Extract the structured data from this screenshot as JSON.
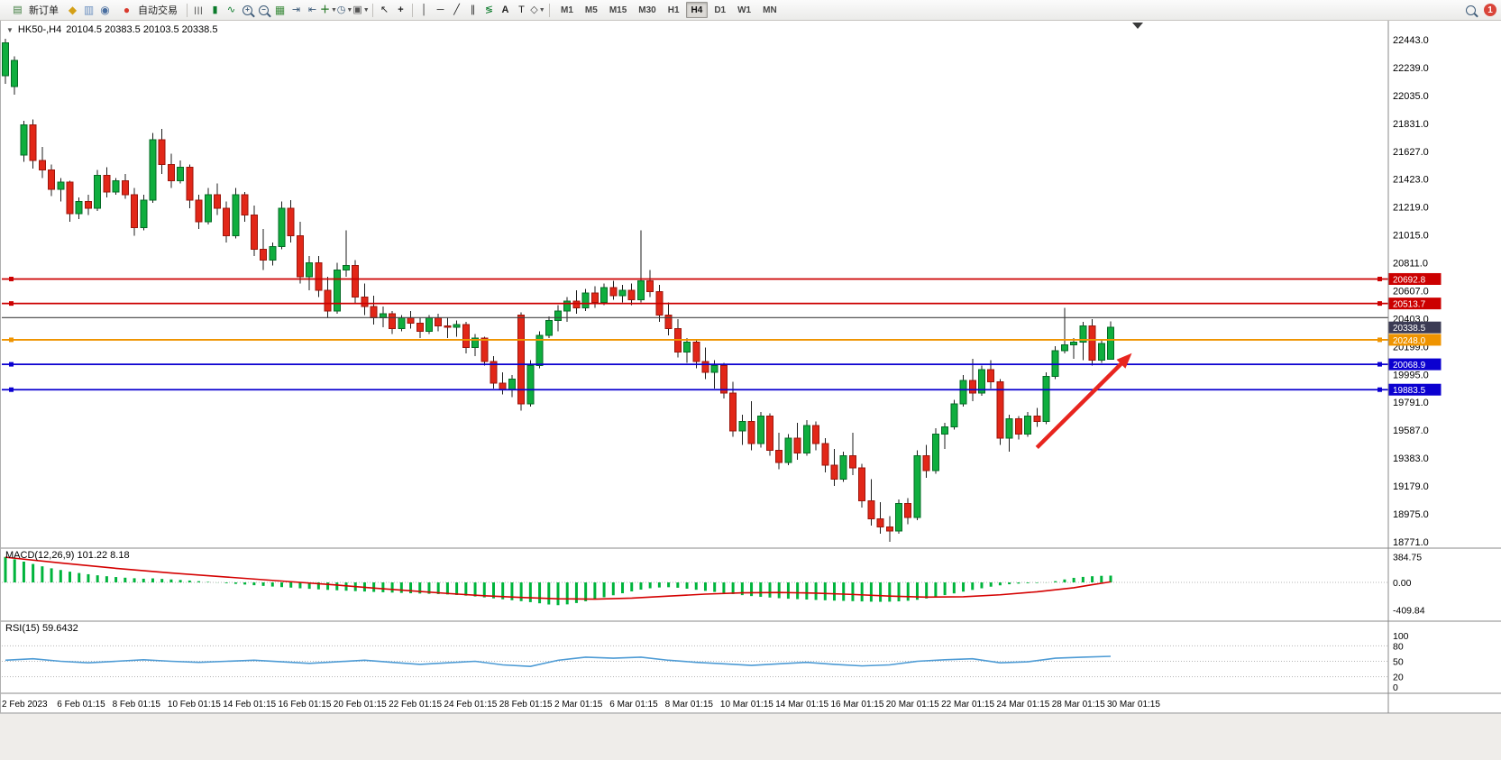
{
  "toolbar": {
    "new_order_label": "新订单",
    "auto_trading_label": "自动交易",
    "timeframes": [
      "M1",
      "M5",
      "M15",
      "M30",
      "H1",
      "H4",
      "D1",
      "W1",
      "MN"
    ],
    "active_timeframe": "H4",
    "notification_count": "1"
  },
  "chart": {
    "title_symbol": "HK50-,H4",
    "title_ohlc": "20104.5 20383.5 20103.5 20338.5",
    "macd_label": "MACD(12,26,9) 101.22 8.18",
    "rsi_label": "RSI(15) 59.6432"
  },
  "chart_data": {
    "type": "candlestick",
    "symbol": "HK50-",
    "timeframe": "H4",
    "price_axis": [
      22443.0,
      22239.0,
      22035.0,
      21831.0,
      21627.0,
      21423.0,
      21219.0,
      21015.0,
      20811.0,
      20607.0,
      20403.0,
      20199.0,
      19995.0,
      19791.0,
      19587.0,
      19383.0,
      19179.0,
      18975.0,
      18771.0
    ],
    "candles": [
      [
        22180,
        22450,
        22120,
        22420
      ],
      [
        22100,
        22320,
        22040,
        22290
      ],
      [
        21600,
        21850,
        21550,
        21820
      ],
      [
        21820,
        21860,
        21500,
        21560
      ],
      [
        21560,
        21660,
        21430,
        21490
      ],
      [
        21490,
        21530,
        21300,
        21350
      ],
      [
        21350,
        21430,
        21260,
        21400
      ],
      [
        21400,
        21410,
        21110,
        21170
      ],
      [
        21170,
        21290,
        21130,
        21260
      ],
      [
        21260,
        21310,
        21160,
        21210
      ],
      [
        21210,
        21490,
        21190,
        21450
      ],
      [
        21450,
        21510,
        21290,
        21330
      ],
      [
        21330,
        21430,
        21310,
        21410
      ],
      [
        21410,
        21460,
        21280,
        21310
      ],
      [
        21310,
        21360,
        21010,
        21070
      ],
      [
        21070,
        21310,
        21050,
        21270
      ],
      [
        21270,
        21760,
        21250,
        21710
      ],
      [
        21710,
        21790,
        21460,
        21530
      ],
      [
        21530,
        21610,
        21360,
        21410
      ],
      [
        21410,
        21560,
        21390,
        21510
      ],
      [
        21510,
        21530,
        21210,
        21270
      ],
      [
        21270,
        21310,
        21060,
        21110
      ],
      [
        21110,
        21360,
        21090,
        21310
      ],
      [
        21310,
        21390,
        21160,
        21210
      ],
      [
        21210,
        21260,
        20960,
        21010
      ],
      [
        21010,
        21360,
        20990,
        21310
      ],
      [
        21310,
        21330,
        21110,
        21160
      ],
      [
        21160,
        21230,
        20860,
        20910
      ],
      [
        20910,
        21060,
        20760,
        20830
      ],
      [
        20830,
        20960,
        20790,
        20930
      ],
      [
        20930,
        21260,
        20910,
        21210
      ],
      [
        21210,
        21270,
        20960,
        21010
      ],
      [
        21010,
        21110,
        20660,
        20710
      ],
      [
        20710,
        20860,
        20610,
        20810
      ],
      [
        20810,
        20860,
        20560,
        20610
      ],
      [
        20610,
        20710,
        20410,
        20460
      ],
      [
        20460,
        20810,
        20440,
        20760
      ],
      [
        20760,
        21050,
        20710,
        20790
      ],
      [
        20790,
        20830,
        20510,
        20560
      ],
      [
        20560,
        20660,
        20430,
        20490
      ],
      [
        20490,
        20570,
        20360,
        20410
      ],
      [
        20410,
        20490,
        20340,
        20440
      ],
      [
        20440,
        20460,
        20290,
        20330
      ],
      [
        20330,
        20430,
        20310,
        20410
      ],
      [
        20410,
        20460,
        20330,
        20370
      ],
      [
        20370,
        20410,
        20260,
        20310
      ],
      [
        20310,
        20430,
        20290,
        20410
      ],
      [
        20410,
        20440,
        20310,
        20350
      ],
      [
        20350,
        20410,
        20260,
        20340
      ],
      [
        20340,
        20390,
        20270,
        20360
      ],
      [
        20360,
        20380,
        20150,
        20190
      ],
      [
        20190,
        20290,
        20130,
        20260
      ],
      [
        20260,
        20270,
        20060,
        20090
      ],
      [
        20090,
        20130,
        19890,
        19930
      ],
      [
        19930,
        20010,
        19850,
        19880
      ],
      [
        19880,
        19990,
        19830,
        19960
      ],
      [
        20430,
        20450,
        19730,
        19780
      ],
      [
        19780,
        20100,
        19760,
        20060
      ],
      [
        20060,
        20310,
        20040,
        20280
      ],
      [
        20280,
        20420,
        20260,
        20390
      ],
      [
        20390,
        20500,
        20310,
        20460
      ],
      [
        20460,
        20560,
        20380,
        20530
      ],
      [
        20530,
        20610,
        20440,
        20480
      ],
      [
        20480,
        20620,
        20460,
        20590
      ],
      [
        20590,
        20640,
        20480,
        20520
      ],
      [
        20520,
        20660,
        20500,
        20630
      ],
      [
        20630,
        20680,
        20540,
        20570
      ],
      [
        20570,
        20650,
        20520,
        20610
      ],
      [
        20610,
        20660,
        20500,
        20540
      ],
      [
        20540,
        21050,
        20520,
        20680
      ],
      [
        20680,
        20760,
        20560,
        20600
      ],
      [
        20600,
        20650,
        20380,
        20430
      ],
      [
        20430,
        20520,
        20280,
        20330
      ],
      [
        20330,
        20400,
        20120,
        20160
      ],
      [
        20160,
        20260,
        20080,
        20230
      ],
      [
        20230,
        20250,
        20040,
        20090
      ],
      [
        20090,
        20190,
        19960,
        20010
      ],
      [
        20010,
        20100,
        19890,
        20060
      ],
      [
        20060,
        20080,
        19820,
        19860
      ],
      [
        19860,
        19940,
        19540,
        19580
      ],
      [
        19580,
        19700,
        19480,
        19650
      ],
      [
        19650,
        19800,
        19440,
        19490
      ],
      [
        19490,
        19720,
        19460,
        19690
      ],
      [
        19690,
        19710,
        19400,
        19440
      ],
      [
        19440,
        19570,
        19300,
        19350
      ],
      [
        19350,
        19560,
        19330,
        19530
      ],
      [
        19530,
        19640,
        19370,
        19420
      ],
      [
        19420,
        19660,
        19400,
        19620
      ],
      [
        19620,
        19650,
        19440,
        19490
      ],
      [
        19490,
        19530,
        19280,
        19330
      ],
      [
        19330,
        19450,
        19180,
        19230
      ],
      [
        19230,
        19430,
        19210,
        19400
      ],
      [
        19400,
        19570,
        19260,
        19310
      ],
      [
        19310,
        19340,
        19020,
        19070
      ],
      [
        19070,
        19230,
        18890,
        18940
      ],
      [
        18940,
        19060,
        18830,
        18880
      ],
      [
        18880,
        18960,
        18770,
        18850
      ],
      [
        18850,
        19080,
        18830,
        19050
      ],
      [
        19050,
        19090,
        18900,
        18950
      ],
      [
        18950,
        19440,
        18930,
        19400
      ],
      [
        19400,
        19480,
        19240,
        19290
      ],
      [
        19290,
        19600,
        19270,
        19560
      ],
      [
        19560,
        19640,
        19450,
        19610
      ],
      [
        19610,
        19810,
        19590,
        19780
      ],
      [
        19780,
        19990,
        19760,
        19950
      ],
      [
        19950,
        20110,
        19800,
        19860
      ],
      [
        19860,
        20060,
        19840,
        20030
      ],
      [
        20030,
        20100,
        19890,
        19940
      ],
      [
        19940,
        19960,
        19480,
        19530
      ],
      [
        19530,
        19700,
        19430,
        19670
      ],
      [
        19670,
        19690,
        19520,
        19560
      ],
      [
        19560,
        19720,
        19540,
        19690
      ],
      [
        19690,
        19750,
        19610,
        19650
      ],
      [
        19650,
        20010,
        19630,
        19980
      ],
      [
        19980,
        20200,
        19960,
        20170
      ],
      [
        20170,
        20480,
        20150,
        20210
      ],
      [
        20210,
        20260,
        20110,
        20230
      ],
      [
        20230,
        20380,
        20100,
        20350
      ],
      [
        20350,
        20400,
        20060,
        20100
      ],
      [
        20100,
        20250,
        20080,
        20220
      ],
      [
        20104.5,
        20383.5,
        20103.5,
        20338.5
      ]
    ],
    "time_labels": [
      {
        "t": "2 Feb 2023",
        "i": 0
      },
      {
        "t": "6 Feb 01:15",
        "i": 6
      },
      {
        "t": "8 Feb 01:15",
        "i": 12
      },
      {
        "t": "10 Feb 01:15",
        "i": 18
      },
      {
        "t": "14 Feb 01:15",
        "i": 24
      },
      {
        "t": "16 Feb 01:15",
        "i": 30
      },
      {
        "t": "20 Feb 01:15",
        "i": 36
      },
      {
        "t": "22 Feb 01:15",
        "i": 42
      },
      {
        "t": "24 Feb 01:15",
        "i": 48
      },
      {
        "t": "28 Feb 01:15",
        "i": 54
      },
      {
        "t": "2 Mar 01:15",
        "i": 60
      },
      {
        "t": "6 Mar 01:15",
        "i": 66
      },
      {
        "t": "8 Mar 01:15",
        "i": 72
      },
      {
        "t": "10 Mar 01:15",
        "i": 78
      },
      {
        "t": "14 Mar 01:15",
        "i": 84
      },
      {
        "t": "16 Mar 01:15",
        "i": 90
      },
      {
        "t": "20 Mar 01:15",
        "i": 96
      },
      {
        "t": "22 Mar 01:15",
        "i": 102
      },
      {
        "t": "24 Mar 01:15",
        "i": 108
      },
      {
        "t": "28 Mar 01:15",
        "i": 114
      },
      {
        "t": "30 Mar 01:15",
        "i": 120
      }
    ],
    "hlines": [
      {
        "price": 20692.8,
        "color": "#cc0000",
        "w": 1.8,
        "label": "20692.8"
      },
      {
        "price": 20513.7,
        "color": "#cc0000",
        "w": 1.8,
        "label": "20513.7"
      },
      {
        "price": 20410.0,
        "color": "#404040",
        "w": 1.1,
        "label": null
      },
      {
        "price": 20248.0,
        "color": "#ef9400",
        "w": 1.8,
        "label": "20248.0"
      },
      {
        "price": 20068.9,
        "color": "#0b00d0",
        "w": 1.8,
        "label": "20068.9"
      },
      {
        "price": 19883.5,
        "color": "#0b00d0",
        "w": 1.8,
        "label": "19883.5"
      }
    ],
    "bid_marker": {
      "price": 20338.5,
      "label": "20338.5",
      "color": "#3b3b54"
    },
    "colors": {
      "up": "#0fae3e",
      "up_border": "#056b25",
      "down": "#e22718",
      "down_border": "#9c150b",
      "wick": "#1c1c1c"
    },
    "macd": {
      "axis_values": [
        384.75,
        0.0,
        -409.84
      ],
      "axis_labels": [
        "384.75",
        "0.00",
        "-409.84"
      ],
      "hist_color": "#00b43c",
      "signal_color": "#d40000",
      "histogram": [
        380,
        345,
        310,
        275,
        240,
        210,
        185,
        160,
        140,
        122,
        106,
        92,
        80,
        70,
        62,
        55,
        60,
        52,
        44,
        36,
        28,
        18,
        8,
        -2,
        -12,
        -22,
        -32,
        -42,
        -52,
        -62,
        -70,
        -78,
        -88,
        -96,
        -104,
        -112,
        -118,
        -124,
        -130,
        -136,
        -142,
        -147,
        -152,
        -157,
        -162,
        -166,
        -170,
        -174,
        -180,
        -188,
        -198,
        -210,
        -224,
        -238,
        -252,
        -266,
        -280,
        -295,
        -312,
        -330,
        -340,
        -328,
        -308,
        -282,
        -252,
        -222,
        -192,
        -162,
        -134,
        -108,
        -88,
        -76,
        -72,
        -80,
        -94,
        -110,
        -126,
        -142,
        -158,
        -174,
        -190,
        -204,
        -216,
        -226,
        -236,
        -244,
        -250,
        -256,
        -262,
        -267,
        -272,
        -276,
        -280,
        -284,
        -288,
        -290,
        -288,
        -283,
        -274,
        -260,
        -240,
        -216,
        -190,
        -164,
        -138,
        -112,
        -88,
        -64,
        -44,
        -28,
        -18,
        -12,
        -8,
        -2,
        18,
        44,
        68,
        82,
        92,
        98,
        101.22
      ],
      "signal": [
        [
          0,
          375
        ],
        [
          6,
          290
        ],
        [
          12,
          210
        ],
        [
          18,
          140
        ],
        [
          24,
          80
        ],
        [
          30,
          20
        ],
        [
          36,
          -40
        ],
        [
          40,
          -85
        ],
        [
          44,
          -125
        ],
        [
          48,
          -165
        ],
        [
          52,
          -200
        ],
        [
          56,
          -225
        ],
        [
          60,
          -245
        ],
        [
          64,
          -250
        ],
        [
          68,
          -235
        ],
        [
          72,
          -205
        ],
        [
          76,
          -175
        ],
        [
          80,
          -155
        ],
        [
          84,
          -150
        ],
        [
          88,
          -160
        ],
        [
          92,
          -180
        ],
        [
          96,
          -205
        ],
        [
          100,
          -220
        ],
        [
          104,
          -215
        ],
        [
          108,
          -185
        ],
        [
          112,
          -140
        ],
        [
          116,
          -80
        ],
        [
          118,
          -35
        ],
        [
          120,
          8.18
        ]
      ]
    },
    "rsi": {
      "axis_labels": [
        100,
        80,
        50,
        20,
        0
      ],
      "levels": [
        80,
        50,
        20
      ],
      "color": "#4d9bd5",
      "points": [
        [
          0,
          52
        ],
        [
          3,
          55
        ],
        [
          6,
          50
        ],
        [
          9,
          47
        ],
        [
          12,
          50
        ],
        [
          15,
          53
        ],
        [
          18,
          50
        ],
        [
          21,
          48
        ],
        [
          24,
          50
        ],
        [
          27,
          52
        ],
        [
          30,
          49
        ],
        [
          33,
          46
        ],
        [
          36,
          49
        ],
        [
          39,
          52
        ],
        [
          42,
          48
        ],
        [
          45,
          44
        ],
        [
          48,
          47
        ],
        [
          51,
          50
        ],
        [
          54,
          43
        ],
        [
          57,
          40
        ],
        [
          60,
          52
        ],
        [
          63,
          58
        ],
        [
          66,
          56
        ],
        [
          69,
          58
        ],
        [
          72,
          52
        ],
        [
          75,
          48
        ],
        [
          78,
          45
        ],
        [
          81,
          42
        ],
        [
          84,
          45
        ],
        [
          87,
          48
        ],
        [
          90,
          44
        ],
        [
          93,
          41
        ],
        [
          96,
          43
        ],
        [
          99,
          50
        ],
        [
          102,
          53
        ],
        [
          105,
          55
        ],
        [
          108,
          47
        ],
        [
          111,
          49
        ],
        [
          114,
          56
        ],
        [
          117,
          58
        ],
        [
          120,
          59.64
        ]
      ]
    },
    "arrow": {
      "from_candle": 112.0,
      "from_price": 19460,
      "to_candle": 122.3,
      "to_price": 20150,
      "color": "#e8251f"
    }
  }
}
